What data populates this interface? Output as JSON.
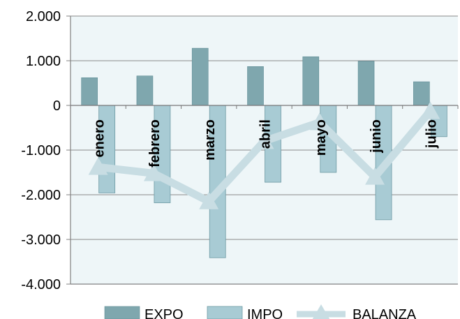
{
  "chart_data": {
    "type": "bar",
    "categories": [
      "enero",
      "febrero",
      "marzo",
      "abril",
      "mayo",
      "junio",
      "julio"
    ],
    "series": [
      {
        "name": "EXPO",
        "type": "bar",
        "color": "#7fa7ae",
        "values": [
          620,
          660,
          1280,
          870,
          1090,
          990,
          530
        ]
      },
      {
        "name": "IMPO",
        "type": "bar",
        "color": "#a8cbd4",
        "values": [
          -1960,
          -2180,
          -3410,
          -1720,
          -1500,
          -2560,
          -700
        ]
      },
      {
        "name": "BALANZA",
        "type": "line",
        "color": "#c8dde3",
        "values": [
          -1380,
          -1520,
          -2150,
          -800,
          -380,
          -1600,
          -130
        ]
      }
    ],
    "ylim": [
      -4000,
      2000
    ],
    "yticks": [
      2000,
      1000,
      0,
      -1000,
      -2000,
      -3000,
      -4000
    ],
    "ytick_labels": [
      "2.000",
      "1.000",
      "0",
      "-1.000",
      "-2.000",
      "-3.000",
      "-4.000"
    ],
    "plot_background": "#eef6f8",
    "grid": true,
    "legend": "bottom",
    "title": "",
    "xlabel": "",
    "ylabel": ""
  }
}
